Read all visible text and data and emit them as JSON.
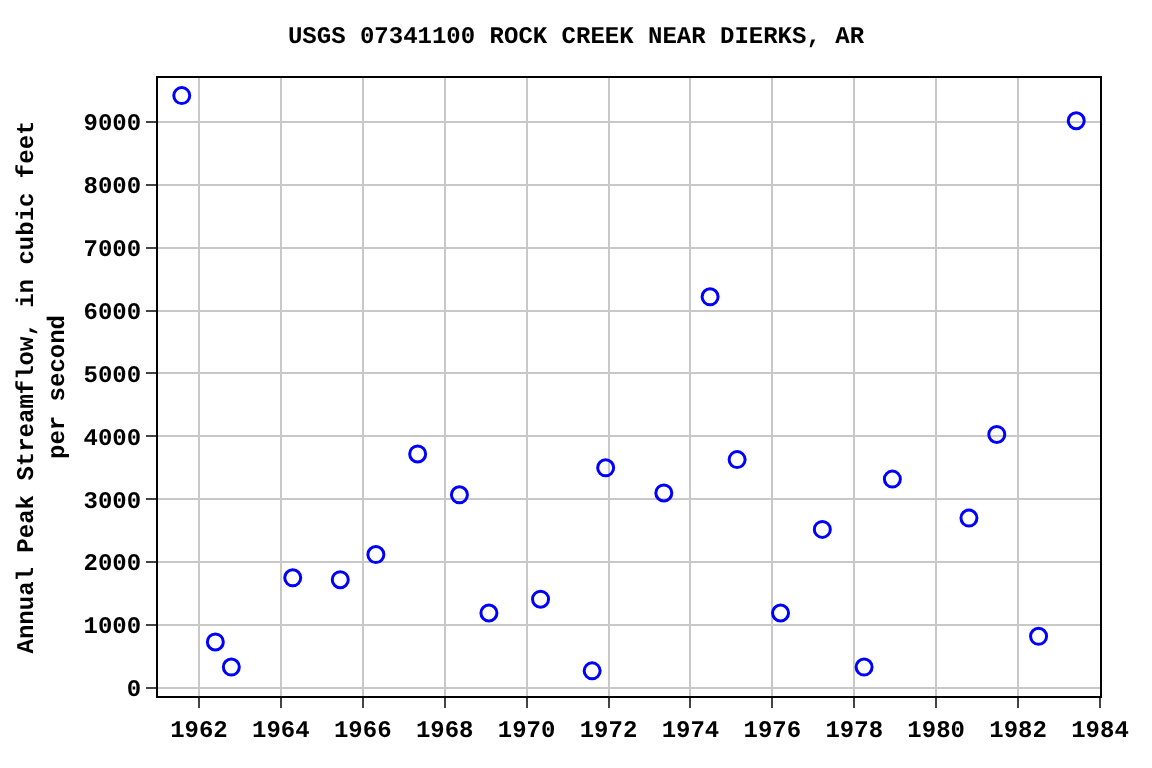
{
  "chart_data": {
    "type": "scatter",
    "title": "USGS 07341100 ROCK CREEK NEAR DIERKS, AR",
    "ylabel": "Annual Peak Streamflow, in cubic feet\nper second",
    "x": [
      1961.58,
      1962.4,
      1962.79,
      1964.29,
      1965.45,
      1966.32,
      1967.34,
      1968.36,
      1969.08,
      1970.34,
      1971.6,
      1971.93,
      1973.35,
      1974.48,
      1975.14,
      1976.2,
      1977.22,
      1978.24,
      1978.93,
      1980.8,
      1981.48,
      1982.5,
      1983.42
    ],
    "series": [
      {
        "color": "#0000ff",
        "values": [
          9420,
          730,
          330,
          1750,
          1720,
          2120,
          3720,
          3070,
          1190,
          1410,
          270,
          3500,
          3100,
          6220,
          3630,
          1190,
          2520,
          330,
          3320,
          2700,
          4030,
          820,
          9020
        ]
      }
    ],
    "xlim": [
      1961,
      1984
    ],
    "xticks": [
      1962,
      1964,
      1966,
      1968,
      1970,
      1972,
      1974,
      1976,
      1978,
      1980,
      1982,
      1984
    ],
    "ylim": [
      -130,
      9700
    ],
    "yticks": [
      0,
      1000,
      2000,
      3000,
      4000,
      5000,
      6000,
      7000,
      8000,
      9000
    ],
    "grid": true,
    "marker": "circle",
    "legend": false
  }
}
